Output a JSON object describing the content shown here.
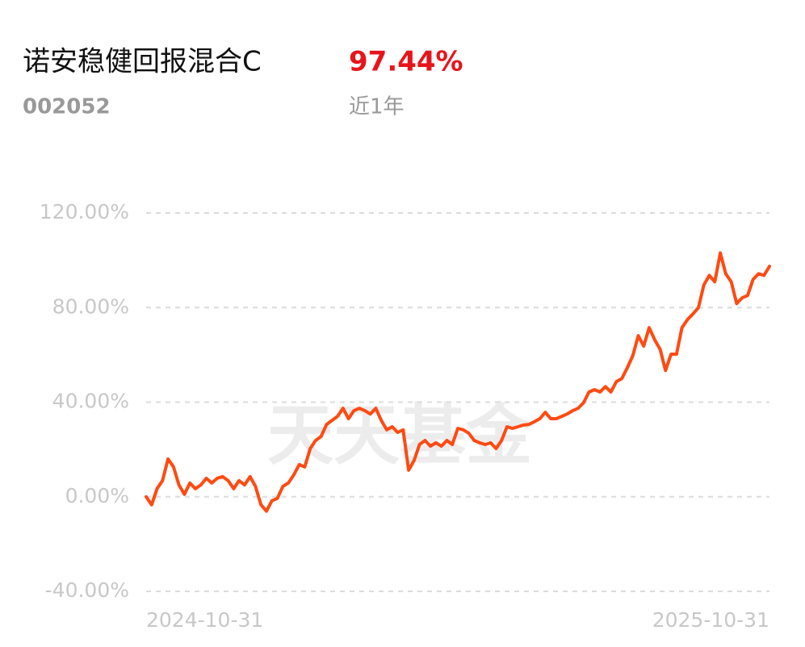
{
  "chart_data": {
    "type": "line",
    "title": "诺安稳健回报混合C",
    "return": "97.44%",
    "code": "002052",
    "period": "近1年",
    "watermark": "天天基金",
    "categories": [
      "2024-10-31",
      null,
      null,
      null,
      null,
      null,
      null,
      null,
      null,
      null,
      null,
      null,
      null,
      null,
      null,
      null,
      null,
      null,
      null,
      null,
      null,
      null,
      null,
      null,
      null,
      null,
      null,
      null,
      null,
      null,
      null,
      null,
      null,
      null,
      null,
      null,
      null,
      null,
      null,
      null,
      null,
      null,
      null,
      null,
      null,
      null,
      null,
      null,
      null,
      null,
      null,
      null,
      null,
      null,
      null,
      null,
      null,
      null,
      null,
      null,
      null,
      null,
      null,
      null,
      null,
      null,
      null,
      null,
      null,
      null,
      null,
      null,
      null,
      null,
      null,
      null,
      null,
      null,
      null,
      null,
      null,
      null,
      null,
      null,
      null,
      null,
      null,
      null,
      null,
      null,
      null,
      null,
      null,
      null,
      null,
      null,
      null,
      null,
      null,
      null,
      null,
      null,
      null,
      null,
      null,
      null,
      null,
      null,
      null,
      null,
      null,
      null,
      null,
      null,
      "2025-10-31"
    ],
    "series": [
      {
        "color": "#ff4a12",
        "values": [
          0,
          -3.4,
          3.4,
          6.8,
          16,
          12.6,
          5,
          1,
          5.8,
          3.4,
          5,
          7.8,
          5.8,
          7.8,
          8.5,
          6.8,
          3.4,
          6.8,
          5,
          8.5,
          4.4,
          -3.4,
          -6.1,
          -1.7,
          -0.7,
          4.4,
          5.8,
          9.2,
          13.6,
          12.6,
          20.4,
          23.8,
          25.5,
          30.6,
          32.3,
          34,
          37.4,
          33,
          36.4,
          37.4,
          36.4,
          35,
          37.4,
          32.3,
          28.3,
          29.6,
          27.2,
          28.3,
          11.2,
          15.3,
          22.1,
          23.8,
          21.4,
          22.8,
          21.4,
          23.8,
          22.1,
          28.9,
          28.3,
          26.9,
          23.8,
          22.8,
          22.1,
          22.8,
          20.4,
          23.8,
          29.6,
          28.9,
          29.6,
          30.3,
          30.6,
          31.7,
          33,
          35.7,
          33,
          33,
          34,
          35,
          36.4,
          37.4,
          39.8,
          44.3,
          45.3,
          44.3,
          46.6,
          44.3,
          48.7,
          50,
          54.5,
          59.6,
          68.1,
          63.7,
          71.5,
          66.4,
          62.3,
          53.4,
          60.3,
          60.3,
          71.5,
          74.9,
          77.3,
          80,
          89.5,
          93.6,
          90.9,
          103.1,
          94.3,
          90.9,
          81.7,
          84.1,
          85.1,
          91.9,
          94.3,
          93.6,
          97.44
        ]
      }
    ],
    "ylim": [
      -40,
      120
    ],
    "yticks": [
      {
        "value": -40,
        "label": "-40.00%"
      },
      {
        "value": 0,
        "label": "0.00%"
      },
      {
        "value": 40,
        "label": "40.00%"
      },
      {
        "value": 80,
        "label": "80.00%"
      },
      {
        "value": 120,
        "label": "120.00%"
      }
    ],
    "grid": true
  }
}
